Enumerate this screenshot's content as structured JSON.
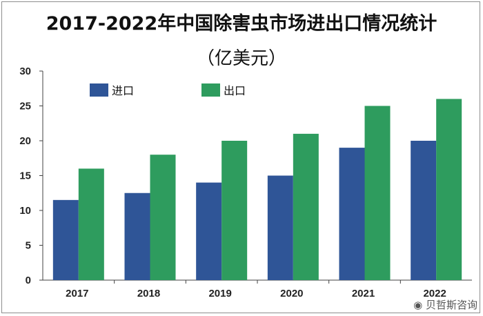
{
  "chart_data": {
    "type": "bar",
    "title_line1": "2017-2022年中国除害虫市场进出口情况统计",
    "title_line2": "（亿美元）",
    "categories": [
      "2017",
      "2018",
      "2019",
      "2020",
      "2021",
      "2022"
    ],
    "series": [
      {
        "name": "进口",
        "color": "#2f5597",
        "values": [
          11.5,
          12.5,
          14,
          15,
          19,
          20
        ]
      },
      {
        "name": "出口",
        "color": "#2e9c5e",
        "values": [
          16,
          18,
          20,
          21,
          25,
          26
        ]
      }
    ],
    "ylim": [
      0,
      30
    ],
    "yticks": [
      0,
      5,
      10,
      15,
      20,
      25,
      30
    ],
    "xlabel": "",
    "ylabel": "",
    "legend": "top-left"
  },
  "watermark": "贝哲斯咨询"
}
